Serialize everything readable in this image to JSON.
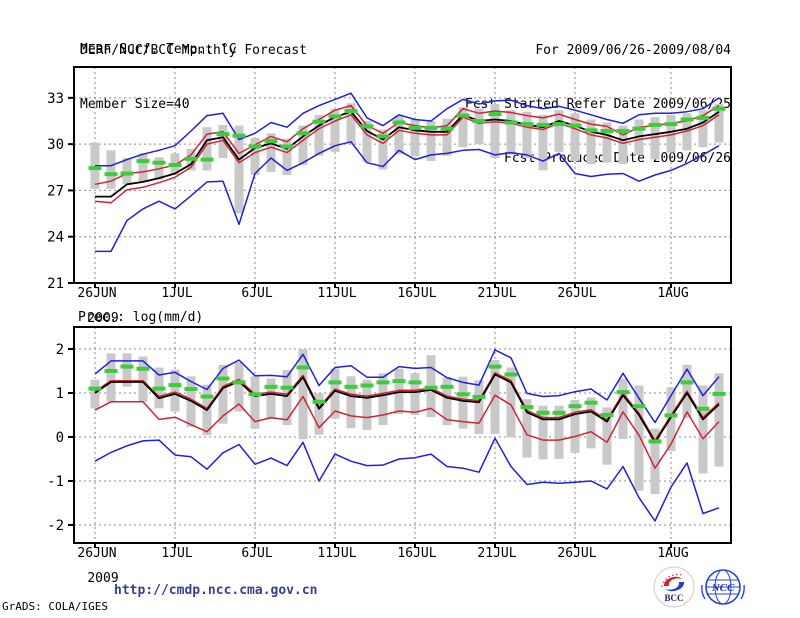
{
  "header": {
    "title": "DERF/NCC/BCC Monthly Forecast",
    "member_size": "Member Size=40",
    "for_range": "For 2009/06/26-2009/08/04",
    "fcst_refer": "Fcst Started Refer Date 2009/06/25",
    "fcst_produced": "Fcst Produced Date 2009/06/26"
  },
  "footer": {
    "url": "http://cmdp.ncc.cma.gov.cn",
    "grads_credit": "GrADS: COLA/IGES",
    "logo_bcc_label": "BCC",
    "logo_ncc_label": "NCC"
  },
  "colors": {
    "blue": "#2020dd",
    "red": "#d02535",
    "black": "#000000",
    "green": "#3ccc3c",
    "gray_bar": "#c9c9c9",
    "grid": "#8a8a8a",
    "url_text": "#39408c"
  },
  "chart_data": [
    {
      "type": "line",
      "title": "Mean Surf. Temp.: °C",
      "ylim": [
        21,
        35
      ],
      "yticks": [
        21,
        24,
        27,
        30,
        33
      ],
      "grid": "dotted",
      "year_label": "2009",
      "x_ticks": [
        {
          "day": 0,
          "label": "26JUN"
        },
        {
          "day": 5,
          "label": "1JUL"
        },
        {
          "day": 10,
          "label": "6JUL"
        },
        {
          "day": 15,
          "label": "11JUL"
        },
        {
          "day": 20,
          "label": "16JUL"
        },
        {
          "day": 25,
          "label": "21JUL"
        },
        {
          "day": 30,
          "label": "26JUL"
        },
        {
          "day": 36,
          "label": "1AUG"
        }
      ],
      "series": [
        {
          "name": "ensemble-max",
          "color": "blue",
          "values": [
            28.6,
            28.6,
            29.0,
            29.35,
            29.6,
            29.9,
            30.85,
            31.85,
            32.0,
            30.3,
            30.7,
            31.4,
            31.1,
            32.0,
            32.5,
            32.9,
            33.3,
            31.7,
            31.2,
            31.9,
            31.6,
            31.5,
            32.3,
            32.9,
            32.6,
            32.8,
            32.85,
            32.5,
            32.3,
            32.45,
            32.2,
            31.9,
            31.6,
            31.35,
            31.9,
            32.0,
            32.0,
            32.1,
            32.3,
            33.0
          ]
        },
        {
          "name": "upper-quartile",
          "color": "red",
          "values": [
            27.4,
            27.6,
            28.1,
            28.2,
            28.4,
            28.65,
            29.3,
            30.65,
            30.8,
            29.4,
            29.95,
            30.5,
            30.15,
            31.0,
            31.6,
            32.2,
            32.5,
            31.2,
            30.7,
            31.4,
            31.2,
            31.05,
            31.2,
            32.3,
            32.0,
            32.15,
            32.05,
            31.85,
            31.7,
            31.95,
            31.6,
            31.3,
            31.15,
            30.6,
            31.1,
            31.2,
            31.35,
            31.5,
            31.85,
            32.5
          ]
        },
        {
          "name": "ensemble-mean",
          "color": "black",
          "values": [
            26.6,
            26.6,
            27.4,
            27.55,
            27.8,
            28.1,
            28.7,
            30.25,
            30.45,
            29.0,
            29.75,
            30.05,
            29.7,
            30.5,
            31.2,
            31.75,
            32.1,
            30.85,
            30.3,
            31.1,
            30.9,
            30.8,
            30.8,
            31.9,
            31.5,
            31.6,
            31.5,
            31.25,
            31.1,
            31.5,
            31.2,
            30.8,
            30.6,
            30.25,
            30.5,
            30.65,
            30.8,
            31.0,
            31.4,
            32.1
          ]
        },
        {
          "name": "lower-quartile",
          "color": "red",
          "values": [
            26.3,
            26.2,
            27.05,
            27.2,
            27.5,
            27.85,
            28.5,
            30.0,
            30.25,
            28.8,
            29.45,
            29.8,
            29.45,
            30.25,
            31.0,
            31.5,
            31.9,
            30.6,
            30.05,
            30.9,
            30.7,
            30.6,
            30.6,
            31.75,
            31.35,
            31.45,
            31.35,
            31.1,
            30.95,
            31.35,
            31.0,
            30.6,
            30.4,
            30.05,
            30.3,
            30.45,
            30.6,
            30.85,
            31.2,
            31.9
          ]
        },
        {
          "name": "ensemble-min",
          "color": "blue",
          "values": [
            23.05,
            23.05,
            25.05,
            25.8,
            26.3,
            25.8,
            26.65,
            27.55,
            27.6,
            24.8,
            28.1,
            29.1,
            28.3,
            28.8,
            29.4,
            29.9,
            30.15,
            28.8,
            28.55,
            29.6,
            29.0,
            29.3,
            29.4,
            29.6,
            29.65,
            29.3,
            29.45,
            29.3,
            28.9,
            29.4,
            28.1,
            27.9,
            28.05,
            28.1,
            27.6,
            28.0,
            28.3,
            28.75,
            29.3,
            29.9
          ]
        }
      ],
      "green_dashes": {
        "name": "daily-marker",
        "values": [
          28.45,
          28.05,
          28.1,
          28.9,
          28.8,
          28.65,
          29.05,
          29.0,
          30.65,
          30.55,
          29.85,
          30.2,
          29.85,
          30.7,
          31.45,
          31.8,
          32.15,
          31.15,
          30.5,
          31.4,
          31.05,
          31.05,
          31.0,
          31.85,
          31.5,
          31.95,
          31.4,
          31.3,
          31.25,
          31.3,
          31.2,
          30.9,
          30.85,
          30.85,
          31.0,
          31.25,
          31.3,
          31.6,
          31.7,
          32.3
        ]
      },
      "spread_bars": {
        "name": "ensemble-spread",
        "top": [
          30.1,
          29.6,
          29.1,
          29.4,
          29.15,
          29.4,
          29.7,
          31.1,
          31.25,
          31.2,
          30.4,
          30.7,
          30.35,
          31.2,
          31.9,
          32.3,
          32.65,
          31.5,
          30.95,
          31.85,
          31.6,
          31.5,
          31.65,
          32.4,
          32.3,
          32.6,
          32.2,
          32.1,
          31.9,
          32.2,
          32.0,
          31.6,
          31.4,
          31.2,
          31.6,
          31.75,
          31.9,
          32.0,
          32.2,
          32.6
        ],
        "bottom": [
          27.1,
          27.1,
          27.4,
          27.55,
          27.7,
          28.0,
          28.3,
          28.3,
          29.1,
          25.5,
          28.0,
          28.2,
          28.0,
          28.65,
          29.25,
          29.5,
          30.05,
          28.85,
          28.35,
          29.35,
          29.2,
          28.9,
          29.25,
          29.8,
          30.0,
          29.1,
          29.3,
          29.1,
          28.3,
          29.5,
          28.9,
          28.7,
          28.8,
          28.7,
          29.3,
          29.0,
          29.45,
          29.6,
          29.8,
          30.1
        ]
      }
    },
    {
      "type": "line",
      "title": "Prec.: log(mm/d)",
      "ylim": [
        -2.41,
        2.5
      ],
      "yticks": [
        -2,
        -1,
        0,
        1,
        2
      ],
      "grid": "dotted",
      "year_label": "2009",
      "x_ticks": [
        {
          "day": 0,
          "label": "26JUN"
        },
        {
          "day": 5,
          "label": "1JUL"
        },
        {
          "day": 10,
          "label": "6JUL"
        },
        {
          "day": 15,
          "label": "11JUL"
        },
        {
          "day": 20,
          "label": "16JUL"
        },
        {
          "day": 25,
          "label": "21JUL"
        },
        {
          "day": 30,
          "label": "26JUL"
        },
        {
          "day": 36,
          "label": "1AUG"
        }
      ],
      "series": [
        {
          "name": "ensemble-max",
          "color": "blue",
          "values": [
            1.43,
            1.73,
            1.73,
            1.73,
            1.41,
            1.47,
            1.26,
            1.08,
            1.56,
            1.75,
            1.39,
            1.4,
            1.37,
            1.88,
            1.17,
            1.58,
            1.62,
            1.36,
            1.36,
            1.6,
            1.56,
            1.58,
            1.35,
            1.24,
            1.18,
            1.98,
            1.8,
            0.99,
            0.92,
            0.94,
            1.03,
            1.09,
            0.84,
            1.45,
            0.88,
            0.33,
            0.94,
            1.54,
            0.94,
            1.37
          ]
        },
        {
          "name": "upper-quartile",
          "color": "red",
          "values": [
            1.04,
            1.28,
            1.28,
            1.28,
            0.92,
            1.02,
            0.86,
            0.65,
            1.15,
            1.31,
            0.97,
            1.02,
            0.97,
            1.4,
            0.68,
            1.09,
            0.97,
            0.93,
            0.99,
            1.06,
            1.06,
            1.11,
            0.93,
            0.86,
            0.83,
            1.46,
            1.28,
            0.6,
            0.44,
            0.44,
            0.56,
            0.62,
            0.39,
            0.99,
            0.54,
            -0.08,
            0.49,
            1.04,
            0.44,
            0.78
          ]
        },
        {
          "name": "ensemble-mean",
          "color": "black",
          "values": [
            1.0,
            1.25,
            1.25,
            1.25,
            0.88,
            0.98,
            0.82,
            0.61,
            1.11,
            1.26,
            0.93,
            0.98,
            0.93,
            1.36,
            0.64,
            1.05,
            0.93,
            0.89,
            0.95,
            1.02,
            1.02,
            1.07,
            0.89,
            0.82,
            0.79,
            1.42,
            1.24,
            0.56,
            0.4,
            0.4,
            0.52,
            0.58,
            0.35,
            0.95,
            0.5,
            -0.12,
            0.45,
            1.0,
            0.4,
            0.74
          ]
        },
        {
          "name": "lower-quartile",
          "color": "red",
          "values": [
            0.61,
            0.8,
            0.8,
            0.8,
            0.4,
            0.45,
            0.28,
            0.12,
            0.48,
            0.75,
            0.35,
            0.44,
            0.39,
            0.92,
            0.21,
            0.59,
            0.48,
            0.44,
            0.5,
            0.59,
            0.56,
            0.65,
            0.39,
            0.35,
            0.31,
            0.95,
            0.73,
            0.05,
            -0.07,
            -0.07,
            0.01,
            0.12,
            -0.12,
            0.57,
            0.04,
            -0.71,
            -0.16,
            0.57,
            -0.04,
            0.35
          ]
        },
        {
          "name": "ensemble-min",
          "color": "blue",
          "values": [
            -0.55,
            -0.35,
            -0.2,
            -0.09,
            -0.07,
            -0.41,
            -0.45,
            -0.73,
            -0.36,
            -0.17,
            -0.62,
            -0.48,
            -0.65,
            -0.12,
            -1.0,
            -0.39,
            -0.55,
            -0.65,
            -0.64,
            -0.5,
            -0.47,
            -0.39,
            -0.67,
            -0.71,
            -0.8,
            -0.03,
            -0.67,
            -1.08,
            -1.03,
            -1.05,
            -1.03,
            -1.0,
            -1.18,
            -0.67,
            -1.38,
            -1.91,
            -1.14,
            -0.59,
            -1.74,
            -1.61
          ]
        }
      ],
      "green_dashes": {
        "name": "daily-marker",
        "values": [
          1.1,
          1.5,
          1.6,
          1.55,
          1.1,
          1.18,
          1.09,
          0.92,
          1.33,
          1.24,
          0.97,
          1.14,
          1.12,
          1.58,
          0.8,
          1.24,
          1.14,
          1.17,
          1.24,
          1.27,
          1.24,
          1.12,
          1.14,
          0.97,
          0.91,
          1.6,
          1.42,
          0.68,
          0.55,
          0.55,
          0.7,
          0.78,
          0.5,
          1.02,
          0.7,
          -0.1,
          0.49,
          1.24,
          0.64,
          0.98
        ]
      },
      "spread_bars": {
        "name": "ensemble-spread",
        "top": [
          1.3,
          1.9,
          1.9,
          1.83,
          1.58,
          1.53,
          1.38,
          1.19,
          1.64,
          1.7,
          1.38,
          1.33,
          1.52,
          2.0,
          0.99,
          1.56,
          1.38,
          1.3,
          1.45,
          1.55,
          1.45,
          1.86,
          1.36,
          1.37,
          1.29,
          1.75,
          1.58,
          0.86,
          0.71,
          0.71,
          0.84,
          0.9,
          0.67,
          1.33,
          1.17,
          0.19,
          1.13,
          1.64,
          1.17,
          1.45
        ],
        "bottom": [
          0.65,
          0.8,
          1.14,
          0.8,
          0.65,
          0.58,
          0.23,
          0.04,
          0.3,
          0.58,
          0.19,
          0.41,
          0.27,
          -0.05,
          0.05,
          0.42,
          0.2,
          0.16,
          0.27,
          0.52,
          0.5,
          0.45,
          0.27,
          0.19,
          0.07,
          0.07,
          -0.01,
          -0.47,
          -0.51,
          -0.5,
          -0.36,
          -0.26,
          -0.63,
          -0.04,
          -1.22,
          -1.3,
          -0.32,
          0.43,
          -0.83,
          -0.67
        ]
      }
    }
  ]
}
